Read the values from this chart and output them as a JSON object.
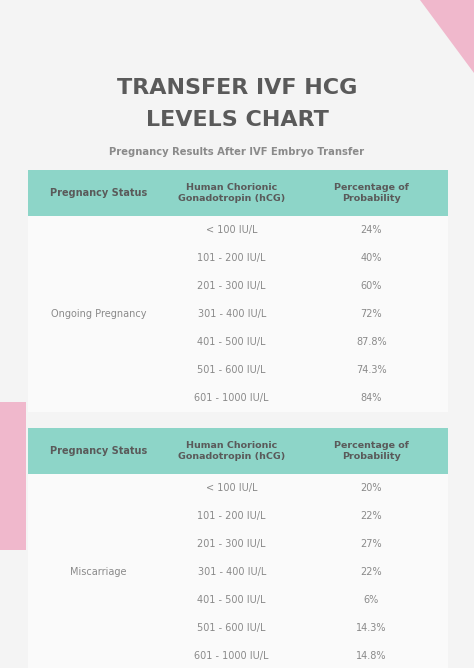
{
  "title_line1": "TRANSFER IVF HCG",
  "title_line2": "LEVELS CHART",
  "subtitle": "Pregnancy Results After IVF Embryo Transfer",
  "bg_color": "#f4f4f4",
  "pink_color": "#f0b8cc",
  "teal_header_color": "#8dd5c8",
  "table_bg_color": "#fafafa",
  "header_text_color": "#5a5a5a",
  "body_text_color": "#8a8a8a",
  "title_color": "#5a5a5a",
  "col_headers": [
    "Pregnancy Status",
    "Human Chorionic\nGonadotropin (hCG)",
    "Percentage of\nProbability"
  ],
  "table1_label": "Ongoing Pregnancy",
  "table1_hcg": [
    "< 100 IU/L",
    "101 - 200 IU/L",
    "201 - 300 IU/L",
    "301 - 400 IU/L",
    "401 - 500 IU/L",
    "501 - 600 IU/L",
    "601 - 1000 IU/L"
  ],
  "table1_pct": [
    "24%",
    "40%",
    "60%",
    "72%",
    "87.8%",
    "74.3%",
    "84%"
  ],
  "table2_label": "Miscarriage",
  "table2_hcg": [
    "< 100 IU/L",
    "101 - 200 IU/L",
    "201 - 300 IU/L",
    "301 - 400 IU/L",
    "401 - 500 IU/L",
    "501 - 600 IU/L",
    "601 - 1000 IU/L"
  ],
  "table2_pct": [
    "20%",
    "22%",
    "27%",
    "22%",
    "6%",
    "14.3%",
    "14.8%"
  ]
}
